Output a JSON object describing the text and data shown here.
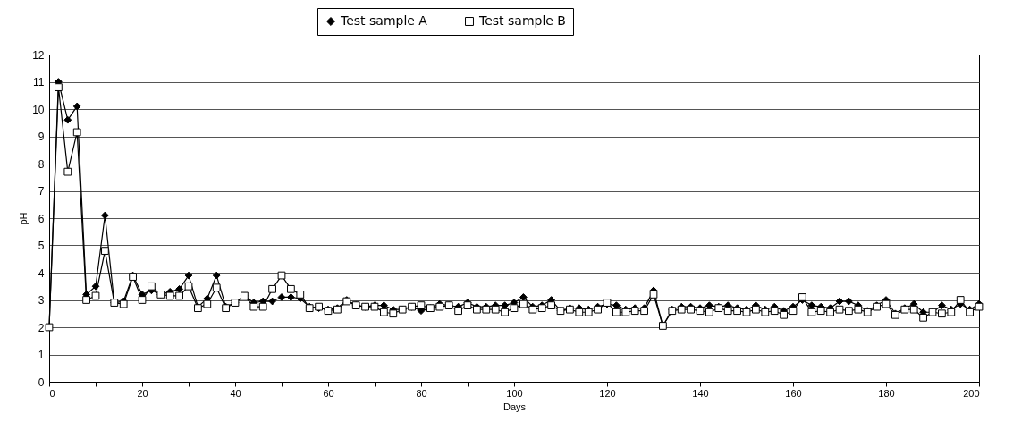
{
  "chart_data": {
    "type": "line",
    "xlabel": "Days",
    "ylabel": "pH",
    "legend": "top",
    "grid": "y",
    "x": [
      0,
      2,
      4,
      6,
      8,
      10,
      12,
      14,
      16,
      18,
      20,
      22,
      24,
      26,
      28,
      30,
      32,
      34,
      36,
      38,
      40,
      42,
      44,
      46,
      48,
      50,
      52,
      54,
      56,
      58,
      60,
      62,
      64,
      66,
      68,
      70,
      72,
      74,
      76,
      78,
      80,
      82,
      84,
      86,
      88,
      90,
      92,
      94,
      96,
      98,
      100,
      102,
      104,
      106,
      108,
      110,
      112,
      114,
      116,
      118,
      120,
      122,
      124,
      126,
      128,
      130,
      132,
      134,
      136,
      138,
      140,
      142,
      144,
      146,
      148,
      150,
      152,
      154,
      156,
      158,
      160,
      162,
      164,
      166,
      168,
      170,
      172,
      174,
      176,
      178,
      180,
      182,
      184,
      186,
      188,
      190,
      192,
      194,
      196,
      198,
      200
    ],
    "series": [
      {
        "name": "Test sample A",
        "color": "#000000",
        "marker": "diamond",
        "values": [
          2.0,
          11.0,
          9.6,
          10.1,
          3.2,
          3.5,
          6.1,
          2.9,
          2.95,
          3.9,
          3.2,
          3.35,
          3.2,
          3.3,
          3.4,
          3.9,
          2.75,
          3.05,
          3.9,
          2.75,
          2.9,
          3.15,
          2.9,
          2.95,
          2.95,
          3.1,
          3.1,
          3.05,
          2.75,
          2.7,
          2.65,
          2.7,
          3.0,
          2.8,
          2.75,
          2.8,
          2.8,
          2.65,
          2.65,
          2.75,
          2.6,
          2.7,
          2.85,
          2.8,
          2.75,
          2.9,
          2.75,
          2.75,
          2.8,
          2.8,
          2.9,
          3.1,
          2.75,
          2.8,
          3.0,
          2.6,
          2.7,
          2.7,
          2.65,
          2.75,
          2.85,
          2.8,
          2.65,
          2.7,
          2.7,
          3.35,
          2.05,
          2.65,
          2.75,
          2.75,
          2.7,
          2.8,
          2.75,
          2.8,
          2.7,
          2.65,
          2.8,
          2.65,
          2.75,
          2.6,
          2.75,
          3.0,
          2.8,
          2.75,
          2.7,
          2.95,
          2.95,
          2.8,
          2.6,
          2.8,
          3.0,
          2.5,
          2.7,
          2.85,
          2.55,
          2.55,
          2.8,
          2.65,
          2.85,
          2.65,
          2.85
        ]
      },
      {
        "name": "Test sample B",
        "color": "#000000",
        "marker": "square",
        "values": [
          2.0,
          10.8,
          7.7,
          9.15,
          3.0,
          3.15,
          4.8,
          2.9,
          2.85,
          3.85,
          3.0,
          3.5,
          3.2,
          3.15,
          3.15,
          3.5,
          2.7,
          2.85,
          3.45,
          2.7,
          2.9,
          3.15,
          2.75,
          2.75,
          3.4,
          3.9,
          3.4,
          3.2,
          2.7,
          2.75,
          2.6,
          2.65,
          2.95,
          2.8,
          2.75,
          2.75,
          2.55,
          2.5,
          2.65,
          2.75,
          2.8,
          2.7,
          2.75,
          2.8,
          2.6,
          2.8,
          2.65,
          2.65,
          2.65,
          2.55,
          2.7,
          2.85,
          2.65,
          2.7,
          2.8,
          2.6,
          2.65,
          2.55,
          2.55,
          2.65,
          2.9,
          2.55,
          2.55,
          2.6,
          2.6,
          3.2,
          2.05,
          2.6,
          2.65,
          2.65,
          2.6,
          2.55,
          2.7,
          2.6,
          2.6,
          2.55,
          2.65,
          2.55,
          2.6,
          2.45,
          2.6,
          3.1,
          2.55,
          2.6,
          2.55,
          2.65,
          2.6,
          2.65,
          2.55,
          2.75,
          2.85,
          2.45,
          2.65,
          2.65,
          2.35,
          2.55,
          2.5,
          2.55,
          3.0,
          2.55,
          2.75
        ]
      }
    ],
    "xlim": [
      0,
      200
    ],
    "xticks": [
      0,
      {
        "value": 10,
        "label": null
      },
      20,
      {
        "value": 30,
        "label": null
      },
      40,
      {
        "value": 50,
        "label": null
      },
      60,
      {
        "value": 70,
        "label": null
      },
      80,
      {
        "value": 90,
        "label": null
      },
      100,
      {
        "value": 110,
        "label": null
      },
      120,
      {
        "value": 130,
        "label": null
      },
      140,
      {
        "value": 150,
        "label": null
      },
      160,
      {
        "value": 170,
        "label": null
      },
      180,
      {
        "value": 190,
        "label": null
      },
      200
    ],
    "ylim": [
      0,
      12
    ],
    "yticks": [
      0,
      1,
      2,
      3,
      4,
      5,
      6,
      7,
      8,
      9,
      10,
      11,
      12
    ]
  }
}
